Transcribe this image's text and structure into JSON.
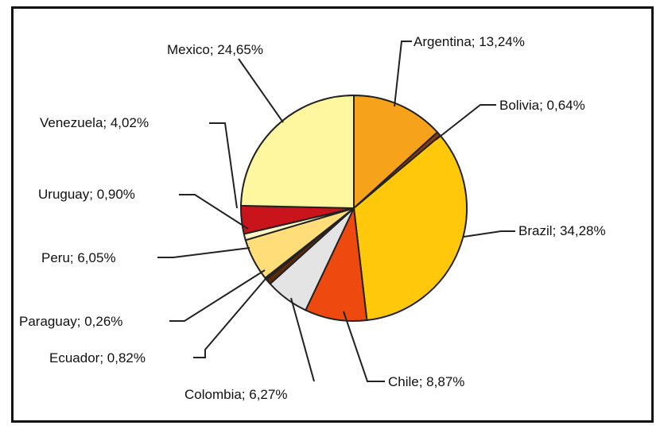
{
  "chart_data": {
    "type": "pie",
    "title": "",
    "slices": [
      {
        "label": "Argentina",
        "value": 13.24,
        "text": "Argentina; 13,24%",
        "color": "#F7A21B"
      },
      {
        "label": "Bolivia",
        "value": 0.64,
        "text": "Bolivia; 0,64%",
        "color": "#8B3A12"
      },
      {
        "label": "Brazil",
        "value": 34.28,
        "text": "Brazil; 34,28%",
        "color": "#FFC80A"
      },
      {
        "label": "Chile",
        "value": 8.87,
        "text": "Chile; 8,87%",
        "color": "#EE4A10"
      },
      {
        "label": "Colombia",
        "value": 6.27,
        "text": "Colombia; 6,27%",
        "color": "#E4E4E4"
      },
      {
        "label": "Ecuador",
        "value": 0.82,
        "text": "Ecuador; 0,82%",
        "color": "#5A2A0A"
      },
      {
        "label": "Paraguay",
        "value": 0.26,
        "text": "Paraguay; 0,26%",
        "color": "#A05A20"
      },
      {
        "label": "Peru",
        "value": 6.05,
        "text": "Peru; 6,05%",
        "color": "#FFDE7A"
      },
      {
        "label": "Uruguay",
        "value": 0.9,
        "text": "Uruguay; 0,90%",
        "color": "#FFF6C8"
      },
      {
        "label": "Venezuela",
        "value": 4.02,
        "text": "Venezuela; 4,02%",
        "color": "#C8141A"
      },
      {
        "label": "Mexico",
        "value": 24.65,
        "text": "Mexico; 24,65%",
        "color": "#FFF6A0"
      }
    ],
    "legend": "none"
  }
}
